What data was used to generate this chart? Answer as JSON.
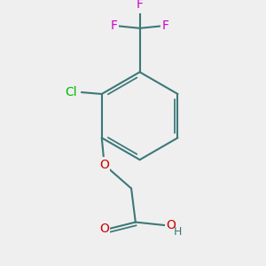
{
  "bg_color": "#efefef",
  "bond_color": "#3d7878",
  "bond_width": 1.5,
  "atom_colors": {
    "O": "#cc0000",
    "Cl": "#00bb00",
    "F": "#cc00cc",
    "H": "#3d7878"
  },
  "font_size_atom": 10,
  "font_size_H": 9,
  "figsize": [
    3.0,
    3.0
  ],
  "dpi": 100,
  "xlim": [
    0,
    300
  ],
  "ylim": [
    0,
    300
  ]
}
